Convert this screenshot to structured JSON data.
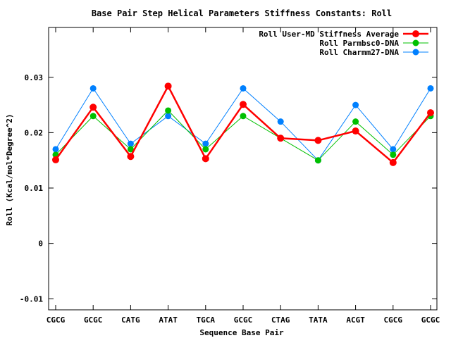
{
  "chart_data": {
    "type": "line",
    "title": "Base Pair Step Helical Parameters Stiffness Constants: Roll",
    "xlabel": "Sequence Base Pair",
    "ylabel": "Roll (Kcal/mol*Degree^2)",
    "categories": [
      "CGCG",
      "GCGC",
      "CATG",
      "ATAT",
      "TGCA",
      "GCGC",
      "CTAG",
      "TATA",
      "ACGT",
      "CGCG",
      "GCGC"
    ],
    "ylim": [
      -0.012,
      0.039
    ],
    "yticks": [
      -0.01,
      0,
      0.01,
      0.02,
      0.03
    ],
    "ytick_labels": [
      "-0.01",
      "0",
      "0.01",
      "0.02",
      "0.03"
    ],
    "grid": false,
    "legend_position": "top-right",
    "series": [
      {
        "name": "Roll User-MD Stiffness Average",
        "color": "#ff0000",
        "values": [
          0.0151,
          0.0246,
          0.0157,
          0.0284,
          0.0153,
          0.0251,
          0.019,
          0.0186,
          0.0203,
          0.0146,
          0.0236
        ]
      },
      {
        "name": "Roll Parmbsc0-DNA",
        "color": "#00c000",
        "values": [
          0.016,
          0.023,
          0.017,
          0.024,
          0.017,
          0.023,
          0.019,
          0.015,
          0.022,
          0.016,
          0.023
        ]
      },
      {
        "name": "Roll Charmm27-DNA",
        "color": "#0080ff",
        "values": [
          0.017,
          0.028,
          0.018,
          0.023,
          0.018,
          0.028,
          0.022,
          0.015,
          0.025,
          0.017,
          0.028
        ]
      }
    ]
  }
}
